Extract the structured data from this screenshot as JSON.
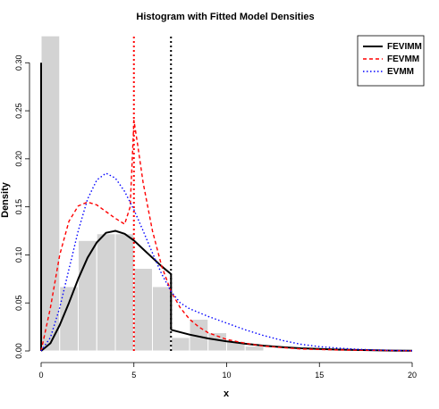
{
  "chart_data": {
    "type": "bar",
    "title": "Histogram with Fitted Model Densities",
    "xlabel": "x",
    "ylabel": "Density",
    "xlim": [
      0,
      20
    ],
    "ylim": [
      0,
      0.33
    ],
    "x_ticks": [
      "0",
      "5",
      "10",
      "15",
      "20"
    ],
    "x_tick_values": [
      0,
      5,
      10,
      15,
      20
    ],
    "y_ticks": [
      "0.00",
      "0.05",
      "0.10",
      "0.15",
      "0.20",
      "0.25",
      "0.30"
    ],
    "y_tick_values": [
      0,
      0.05,
      0.1,
      0.15,
      0.2,
      0.25,
      0.3
    ],
    "histogram": {
      "color": "#d3d3d3",
      "bins": [
        {
          "x0": 0,
          "x1": 1,
          "density": 0.328
        },
        {
          "x0": 1,
          "x1": 2,
          "density": 0.067
        },
        {
          "x0": 2,
          "x1": 3,
          "density": 0.115
        },
        {
          "x0": 3,
          "x1": 4,
          "density": 0.122
        },
        {
          "x0": 4,
          "x1": 5,
          "density": 0.122
        },
        {
          "x0": 5,
          "x1": 6,
          "density": 0.086
        },
        {
          "x0": 6,
          "x1": 7,
          "density": 0.067
        },
        {
          "x0": 7,
          "x1": 8,
          "density": 0.014
        },
        {
          "x0": 8,
          "x1": 9,
          "density": 0.033
        },
        {
          "x0": 9,
          "x1": 10,
          "density": 0.019
        },
        {
          "x0": 10,
          "x1": 11,
          "density": 0.01
        },
        {
          "x0": 11,
          "x1": 12,
          "density": 0.005
        }
      ]
    },
    "vertical_lines": [
      {
        "x": 5,
        "color": "#ff0000",
        "style": "dotted"
      },
      {
        "x": 7,
        "color": "#000000",
        "style": "dotted"
      }
    ],
    "legend": {
      "position": "top-right",
      "entries": [
        {
          "label": "FEVIMM",
          "color": "#000000",
          "style": "solid"
        },
        {
          "label": "FEVMM",
          "color": "#ff0000",
          "style": "dashed"
        },
        {
          "label": "EVMM",
          "color": "#0000ff",
          "style": "dotted"
        }
      ]
    },
    "series": [
      {
        "name": "FEVIMM",
        "color": "#000000",
        "style": "solid",
        "segments": [
          [
            [
              0,
              0.3
            ],
            [
              0,
              0
            ]
          ],
          [
            [
              0,
              0
            ],
            [
              0.5,
              0.008
            ],
            [
              1,
              0.027
            ],
            [
              1.5,
              0.05
            ],
            [
              2,
              0.075
            ],
            [
              2.5,
              0.097
            ],
            [
              3,
              0.113
            ],
            [
              3.5,
              0.123
            ],
            [
              4,
              0.125
            ],
            [
              4.5,
              0.122
            ],
            [
              5,
              0.115
            ],
            [
              5.5,
              0.106
            ],
            [
              6,
              0.097
            ],
            [
              6.5,
              0.088
            ],
            [
              7,
              0.08
            ]
          ],
          [
            [
              7,
              0.08
            ],
            [
              7,
              0.022
            ]
          ],
          [
            [
              7,
              0.022
            ],
            [
              8,
              0.017
            ],
            [
              9,
              0.013
            ],
            [
              10,
              0.01
            ],
            [
              11,
              0.0075
            ],
            [
              12,
              0.0055
            ],
            [
              13,
              0.004
            ],
            [
              14,
              0.0028
            ],
            [
              15,
              0.002
            ],
            [
              16,
              0.0014
            ],
            [
              17,
              0.001
            ],
            [
              18,
              0.0007
            ],
            [
              19,
              0.0004
            ],
            [
              20,
              0.0002
            ]
          ]
        ]
      },
      {
        "name": "FEVMM",
        "color": "#ff0000",
        "style": "dashed",
        "segments": [
          [
            [
              0,
              0
            ],
            [
              0.5,
              0.045
            ],
            [
              1,
              0.1
            ],
            [
              1.5,
              0.135
            ],
            [
              2,
              0.151
            ],
            [
              2.5,
              0.155
            ],
            [
              3,
              0.152
            ],
            [
              3.5,
              0.145
            ],
            [
              4,
              0.138
            ],
            [
              4.5,
              0.132
            ],
            [
              4.8,
              0.15
            ],
            [
              5,
              0.24
            ],
            [
              5.2,
              0.215
            ],
            [
              5.5,
              0.175
            ],
            [
              6,
              0.125
            ],
            [
              6.5,
              0.088
            ],
            [
              7,
              0.062
            ],
            [
              7.5,
              0.045
            ],
            [
              8,
              0.033
            ],
            [
              8.5,
              0.025
            ],
            [
              9,
              0.019
            ],
            [
              10,
              0.012
            ],
            [
              11,
              0.008
            ],
            [
              12,
              0.005
            ],
            [
              14,
              0.002
            ],
            [
              16,
              0.001
            ],
            [
              20,
              0.0002
            ]
          ]
        ]
      },
      {
        "name": "EVMM",
        "color": "#0000ff",
        "style": "dotted",
        "segments": [
          [
            [
              0,
              0
            ],
            [
              0.5,
              0.014
            ],
            [
              1,
              0.045
            ],
            [
              1.5,
              0.085
            ],
            [
              2,
              0.125
            ],
            [
              2.5,
              0.158
            ],
            [
              3,
              0.178
            ],
            [
              3.5,
              0.185
            ],
            [
              4,
              0.18
            ],
            [
              4.5,
              0.166
            ],
            [
              5,
              0.147
            ],
            [
              5.5,
              0.125
            ],
            [
              6,
              0.102
            ],
            [
              6.5,
              0.08
            ],
            [
              7,
              0.062
            ],
            [
              7.5,
              0.05
            ],
            [
              8,
              0.044
            ],
            [
              9,
              0.036
            ],
            [
              10,
              0.029
            ],
            [
              11,
              0.022
            ],
            [
              12,
              0.016
            ],
            [
              13,
              0.011
            ],
            [
              14,
              0.007
            ],
            [
              15,
              0.0045
            ],
            [
              16,
              0.003
            ],
            [
              17,
              0.0018
            ],
            [
              18,
              0.001
            ],
            [
              19,
              0.0006
            ],
            [
              20,
              0.0003
            ]
          ]
        ]
      }
    ]
  }
}
